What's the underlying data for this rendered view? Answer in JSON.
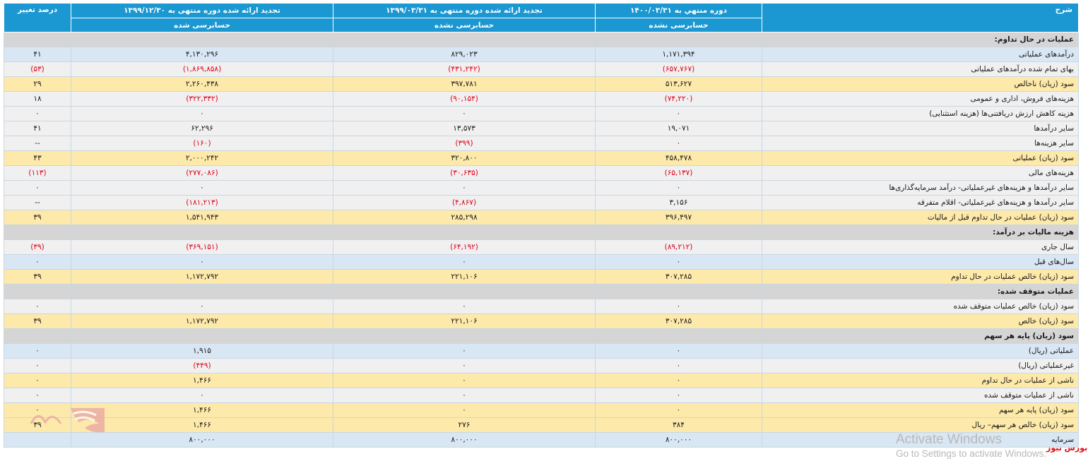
{
  "headers": {
    "description": "شرح",
    "period1": "دوره منتهي به ۱۴۰۰/۰۳/۳۱",
    "period1_status": "حسابرسی نشده",
    "period2": "تجدید ارائه شده دوره منتهی به ۱۳۹۹/۰۳/۳۱",
    "period2_status": "حسابرسی نشده",
    "period3": "تجدید ارائه شده دوره منتهی به ۱۳۹۹/۱۲/۳۰",
    "period3_status": "حسابرسی شده",
    "change": "درصد تغییر"
  },
  "rows": [
    {
      "type": "section",
      "desc": "عملیات در حال تداوم:",
      "p1": "",
      "p2": "",
      "p3": "",
      "pct": ""
    },
    {
      "type": "light",
      "desc": "درآمدهای عملیاتی",
      "p1": "۱,۱۷۱,۳۹۴",
      "p2": "۸۲۹,۰۲۳",
      "p3": "۴,۱۳۰,۲۹۶",
      "pct": "۴۱"
    },
    {
      "type": "gray",
      "desc": "بهای تمام شده درآمدهای عملیاتی",
      "p1": "(۶۵۷,۷۶۷)",
      "p2": "(۴۳۱,۲۴۲)",
      "p3": "(۱,۸۶۹,۸۵۸)",
      "pct": "(۵۳)"
    },
    {
      "type": "yellow",
      "desc": "سود (زیان) ناخالص",
      "p1": "۵۱۳,۶۲۷",
      "p2": "۳۹۷,۷۸۱",
      "p3": "۲,۲۶۰,۴۳۸",
      "pct": "۲۹"
    },
    {
      "type": "gray",
      "desc": "هزینه‌های فروش، اداری و عمومی",
      "p1": "(۷۴,۲۲۰)",
      "p2": "(۹۰,۱۵۴)",
      "p3": "(۳۲۲,۳۳۲)",
      "pct": "۱۸"
    },
    {
      "type": "gray",
      "desc": "هزینه کاهش ارزش دریافتنی‌ها (هزینه استثنایی)",
      "p1": "۰",
      "p2": "۰",
      "p3": "۰",
      "pct": "۰"
    },
    {
      "type": "gray",
      "desc": "سایر درآمدها",
      "p1": "۱۹,۰۷۱",
      "p2": "۱۳,۵۷۳",
      "p3": "۶۲,۲۹۶",
      "pct": "۴۱"
    },
    {
      "type": "gray",
      "desc": "سایر هزینه‌ها",
      "p1": "۰",
      "p2": "(۳۹۹)",
      "p3": "(۱۶۰)",
      "pct": "--"
    },
    {
      "type": "yellow",
      "desc": "سود (زیان) عملیاتی",
      "p1": "۴۵۸,۴۷۸",
      "p2": "۳۲۰,۸۰۰",
      "p3": "۲,۰۰۰,۲۴۲",
      "pct": "۴۳"
    },
    {
      "type": "gray",
      "desc": "هزینه‌های مالی",
      "p1": "(۶۵,۱۳۷)",
      "p2": "(۳۰,۶۳۵)",
      "p3": "(۲۷۷,۰۸۶)",
      "pct": "(۱۱۳)"
    },
    {
      "type": "gray",
      "desc": "سایر درآمدها و هزینه‌های غیرعملیاتی- درآمد سرمایه‌گذاری‌ها",
      "p1": "۰",
      "p2": "۰",
      "p3": "۰",
      "pct": "۰"
    },
    {
      "type": "gray",
      "desc": "سایر درآمدها و هزینه‌های غیرعملیاتی- اقلام متفرقه",
      "p1": "۳,۱۵۶",
      "p2": "(۴,۸۶۷)",
      "p3": "(۱۸۱,۲۱۳)",
      "pct": "--"
    },
    {
      "type": "yellow",
      "desc": "سود (زیان) عملیات در حال تداوم قبل از مالیات",
      "p1": "۳۹۶,۴۹۷",
      "p2": "۲۸۵,۲۹۸",
      "p3": "۱,۵۴۱,۹۴۳",
      "pct": "۳۹"
    },
    {
      "type": "section",
      "desc": "هزینه مالیات بر درآمد:",
      "p1": "",
      "p2": "",
      "p3": "",
      "pct": ""
    },
    {
      "type": "gray",
      "desc": "سال جاری",
      "p1": "(۸۹,۲۱۲)",
      "p2": "(۶۴,۱۹۲)",
      "p3": "(۳۶۹,۱۵۱)",
      "pct": "(۳۹)"
    },
    {
      "type": "light",
      "desc": "سال‌های قبل",
      "p1": "۰",
      "p2": "۰",
      "p3": "۰",
      "pct": "۰"
    },
    {
      "type": "yellow",
      "desc": "سود (زیان) خالص عملیات در حال تداوم",
      "p1": "۳۰۷,۲۸۵",
      "p2": "۲۲۱,۱۰۶",
      "p3": "۱,۱۷۲,۷۹۲",
      "pct": "۳۹"
    },
    {
      "type": "section",
      "desc": "عملیات متوقف شده:",
      "p1": "",
      "p2": "",
      "p3": "",
      "pct": ""
    },
    {
      "type": "gray",
      "desc": "سود (زیان) خالص عملیات متوقف شده",
      "p1": "۰",
      "p2": "۰",
      "p3": "۰",
      "pct": "۰"
    },
    {
      "type": "yellow",
      "desc": "سود (زیان) خالص",
      "p1": "۳۰۷,۲۸۵",
      "p2": "۲۲۱,۱۰۶",
      "p3": "۱,۱۷۲,۷۹۲",
      "pct": "۳۹"
    },
    {
      "type": "section",
      "desc": "سود (زیان) پایه هر سهم",
      "p1": "",
      "p2": "",
      "p3": "",
      "pct": ""
    },
    {
      "type": "light",
      "desc": "عملیاتی (ریال)",
      "p1": "۰",
      "p2": "۰",
      "p3": "۱,۹۱۵",
      "pct": "۰"
    },
    {
      "type": "gray",
      "desc": "غیرعملیاتی (ریال)",
      "p1": "۰",
      "p2": "۰",
      "p3": "(۴۴۹)",
      "pct": "۰"
    },
    {
      "type": "yellow",
      "desc": "ناشی از عملیات در حال تداوم",
      "p1": "۰",
      "p2": "۰",
      "p3": "۱,۴۶۶",
      "pct": "۰"
    },
    {
      "type": "gray",
      "desc": "ناشی از عملیات متوقف شده",
      "p1": "۰",
      "p2": "۰",
      "p3": "۰",
      "pct": "۰"
    },
    {
      "type": "yellow",
      "desc": "سود (زیان) پایه هر سهم",
      "p1": "۰",
      "p2": "۰",
      "p3": "۱,۴۶۶",
      "pct": "۰"
    },
    {
      "type": "yellow",
      "desc": "سود (زیان) خالص هر سهم– ریال",
      "p1": "۳۸۴",
      "p2": "۲۷۶",
      "p3": "۱,۴۶۶",
      "pct": "۳۹"
    },
    {
      "type": "light",
      "desc": "سرمایه",
      "p1": "۸۰۰,۰۰۰",
      "p2": "۸۰۰,۰۰۰",
      "p3": "۸۰۰,۰۰۰",
      "pct": ""
    }
  ],
  "watermark": {
    "line1": "Activate Windows",
    "line2": "Go to Settings to activate Windows."
  },
  "brand": "بورس نیوز",
  "colors": {
    "header_bg": "#1b97d1",
    "negative": "#e0001b",
    "row_light": "#d9e6f4",
    "row_gray": "#f0f0f0",
    "row_yellow": "#fde9a9",
    "row_section": "#d5d5d5"
  }
}
